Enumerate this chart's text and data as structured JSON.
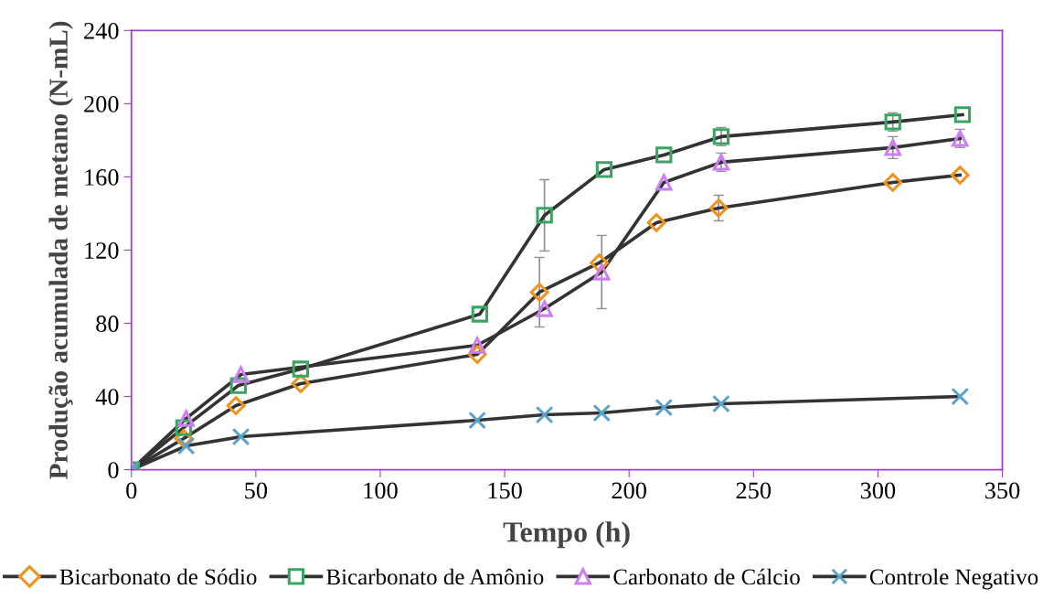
{
  "chart_data": {
    "type": "line",
    "xlabel": "Tempo (h)",
    "ylabel": "Produção acumulada de metano (N-mL)",
    "xlim": [
      0,
      350
    ],
    "xticks": [
      0,
      50,
      100,
      150,
      200,
      250,
      300,
      350
    ],
    "ylim": [
      0,
      240
    ],
    "yticks": [
      0,
      40,
      80,
      120,
      160,
      200,
      240
    ],
    "grid": false,
    "legend": "bottom",
    "line_style": "solid",
    "series": [
      {
        "name": "Bicarbonato de Sódio",
        "color": "#f0931e",
        "marker": "diamond",
        "x": [
          0,
          21,
          42,
          68,
          139,
          164,
          188,
          211,
          236,
          306,
          333
        ],
        "values": [
          0,
          17,
          35,
          47,
          63,
          97,
          113,
          135,
          143,
          157,
          161
        ],
        "errors": [
          null,
          null,
          null,
          null,
          null,
          19,
          null,
          null,
          7,
          null,
          null
        ]
      },
      {
        "name": "Bicarbonato de Amônio",
        "color": "#3aa562",
        "marker": "square",
        "x": [
          0,
          21,
          43,
          68,
          140,
          166,
          190,
          214,
          237,
          306,
          334
        ],
        "values": [
          0,
          23,
          46,
          55,
          85,
          139,
          164,
          172,
          182,
          190,
          194
        ],
        "errors": [
          null,
          null,
          null,
          null,
          null,
          19.5,
          null,
          null,
          5,
          5,
          null
        ]
      },
      {
        "name": "Carbonato de Cálcio",
        "color": "#cc7ff0",
        "marker": "triangle",
        "x": [
          0,
          22,
          44,
          139,
          166,
          189,
          214,
          237,
          306,
          333
        ],
        "values": [
          0,
          28,
          52,
          68,
          88,
          108,
          157,
          168,
          176,
          181
        ],
        "errors": [
          null,
          null,
          null,
          null,
          null,
          20,
          null,
          5,
          6,
          5
        ]
      },
      {
        "name": "Controle Negativo",
        "color": "#5ba3c8",
        "marker": "cross",
        "x": [
          0,
          22,
          44,
          139,
          166,
          189,
          214,
          237,
          333
        ],
        "values": [
          0,
          13,
          18,
          27,
          30,
          31,
          34,
          36,
          40
        ]
      }
    ]
  }
}
